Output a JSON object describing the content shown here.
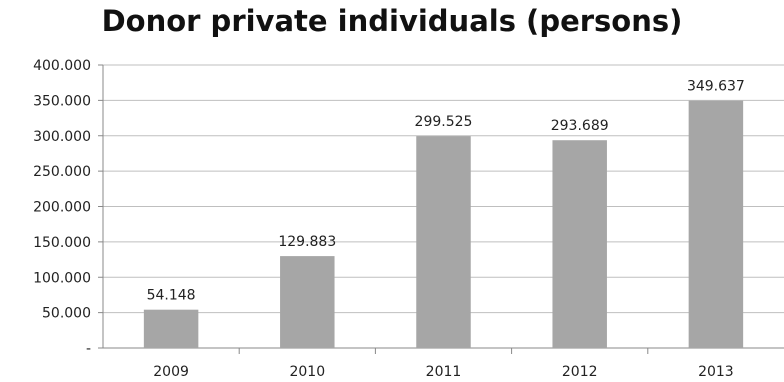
{
  "chart_data": {
    "type": "bar",
    "title": "Donor private individuals (persons)",
    "xlabel": "",
    "ylabel": "",
    "categories": [
      "2009",
      "2010",
      "2011",
      "2012",
      "2013"
    ],
    "values": [
      54148,
      129883,
      299525,
      293689,
      349637
    ],
    "value_labels": [
      "54.148",
      "129.883",
      "299.525",
      "293.689",
      "349.637"
    ],
    "ylim": [
      0,
      400000
    ],
    "y_ticks": [
      0,
      50000,
      100000,
      150000,
      200000,
      250000,
      300000,
      350000,
      400000
    ],
    "y_tick_labels": [
      "-",
      "50.000",
      "100.000",
      "150.000",
      "200.000",
      "250.000",
      "300.000",
      "350.000",
      "400.000"
    ],
    "grid": true,
    "legend": "none",
    "colors": {
      "bar": "#a6a6a6",
      "grid": "#bfbfbf",
      "axis": "#888888"
    }
  }
}
